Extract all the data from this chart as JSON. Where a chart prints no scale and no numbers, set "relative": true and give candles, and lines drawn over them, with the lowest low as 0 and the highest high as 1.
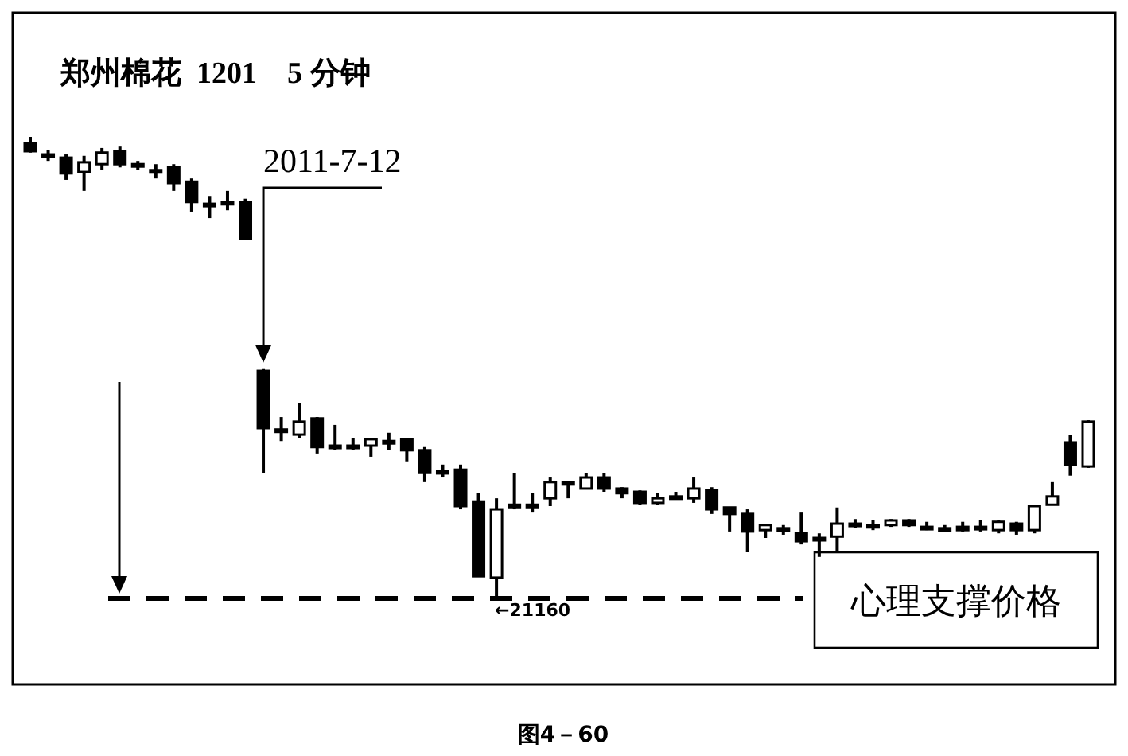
{
  "chart_data": {
    "type": "candlestick",
    "title": "郑州棉花  1201    5 分钟",
    "relative": true,
    "categories": [
      null,
      null,
      null,
      null,
      null,
      null,
      null,
      null,
      null,
      null,
      null,
      null,
      null,
      null,
      null,
      null,
      null,
      null,
      null,
      null,
      null,
      null,
      null,
      null,
      null,
      null,
      null,
      null,
      null,
      null,
      null,
      null,
      null,
      null,
      null,
      null,
      null,
      null,
      null,
      null,
      null,
      null,
      null,
      null,
      null,
      null,
      null,
      null,
      null,
      null,
      null,
      null,
      null,
      null,
      null,
      null,
      null,
      null,
      null,
      null
    ],
    "ohlc": [
      [
        0.986,
        1,
        0.966,
        0.969
      ],
      [
        0.962,
        0.972,
        0.948,
        0.96
      ],
      [
        0.955,
        0.962,
        0.907,
        0.921
      ],
      [
        0.924,
        0.959,
        0.883,
        0.945
      ],
      [
        0.941,
        0.976,
        0.928,
        0.966
      ],
      [
        0.969,
        0.979,
        0.934,
        0.941
      ],
      [
        0.941,
        0.948,
        0.928,
        0.938
      ],
      [
        0.928,
        0.941,
        0.91,
        0.926
      ],
      [
        0.934,
        0.941,
        0.883,
        0.9
      ],
      [
        0.903,
        0.91,
        0.838,
        0.859
      ],
      [
        0.855,
        0.872,
        0.824,
        0.853
      ],
      [
        0.859,
        0.883,
        0.841,
        0.857
      ],
      [
        0.859,
        0.866,
        0.779,
        0.779
      ],
      [
        0.493,
        0.497,
        0.272,
        0.369
      ],
      [
        0.366,
        0.393,
        0.341,
        0.364
      ],
      [
        0.355,
        0.424,
        0.348,
        0.383
      ],
      [
        0.39,
        0.393,
        0.314,
        0.328
      ],
      [
        0.331,
        0.376,
        0.321,
        0.329
      ],
      [
        0.331,
        0.348,
        0.321,
        0.329
      ],
      [
        0.331,
        0.348,
        0.307,
        0.345
      ],
      [
        0.341,
        0.359,
        0.321,
        0.34
      ],
      [
        0.345,
        0.348,
        0.297,
        0.321
      ],
      [
        0.321,
        0.328,
        0.252,
        0.272
      ],
      [
        0.276,
        0.29,
        0.262,
        0.274
      ],
      [
        0.279,
        0.29,
        0.193,
        0.2
      ],
      [
        0.21,
        0.228,
        0.048,
        0.048
      ],
      [
        0.045,
        0.217,
        0,
        0.193
      ],
      [
        0.203,
        0.272,
        0.193,
        0.202
      ],
      [
        0.203,
        0.228,
        0.186,
        0.202
      ],
      [
        0.217,
        0.262,
        0.2,
        0.252
      ],
      [
        0.252,
        0.255,
        0.217,
        0.25
      ],
      [
        0.238,
        0.272,
        0.238,
        0.262
      ],
      [
        0.262,
        0.272,
        0.231,
        0.238
      ],
      [
        0.238,
        0.241,
        0.217,
        0.228
      ],
      [
        0.231,
        0.234,
        0.203,
        0.207
      ],
      [
        0.207,
        0.228,
        0.203,
        0.217
      ],
      [
        0.221,
        0.231,
        0.217,
        0.219
      ],
      [
        0.217,
        0.262,
        0.207,
        0.238
      ],
      [
        0.234,
        0.241,
        0.183,
        0.193
      ],
      [
        0.197,
        0.197,
        0.145,
        0.183
      ],
      [
        0.183,
        0.193,
        0.1,
        0.145
      ],
      [
        0.148,
        0.162,
        0.131,
        0.159
      ],
      [
        0.152,
        0.159,
        0.138,
        0.15
      ],
      [
        0.141,
        0.186,
        0.117,
        0.124
      ],
      [
        0.131,
        0.141,
        0.09,
        0.129
      ],
      [
        0.134,
        0.197,
        0.1,
        0.162
      ],
      [
        0.162,
        0.172,
        0.152,
        0.16
      ],
      [
        0.159,
        0.169,
        0.148,
        0.157
      ],
      [
        0.159,
        0.172,
        0.155,
        0.169
      ],
      [
        0.169,
        0.172,
        0.155,
        0.159
      ],
      [
        0.155,
        0.166,
        0.148,
        0.153
      ],
      [
        0.152,
        0.159,
        0.145,
        0.15
      ],
      [
        0.155,
        0.166,
        0.145,
        0.148
      ],
      [
        0.155,
        0.169,
        0.145,
        0.153
      ],
      [
        0.148,
        0.169,
        0.141,
        0.166
      ],
      [
        0.162,
        0.166,
        0.138,
        0.148
      ],
      [
        0.148,
        0.203,
        0.141,
        0.2
      ],
      [
        0.203,
        0.252,
        0.203,
        0.221
      ],
      [
        0.338,
        0.355,
        0.266,
        0.29
      ],
      [
        0.286,
        0.386,
        0.283,
        0.383
      ]
    ],
    "ref_lines": [
      {
        "axis": "y",
        "value": 0,
        "label": "心理支撑价格",
        "color": "#000000",
        "line_style": "dashed"
      }
    ],
    "annotations": [
      "2011-7-12",
      "←21160",
      "图4－60"
    ]
  }
}
